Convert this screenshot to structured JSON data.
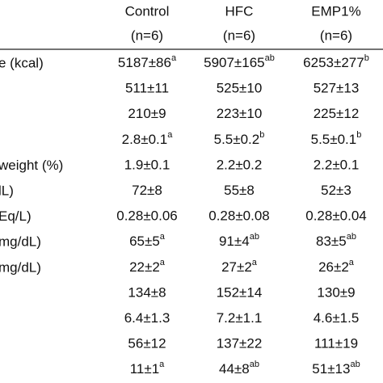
{
  "table": {
    "columns": [
      {
        "name": "Control",
        "n": "(n=6)"
      },
      {
        "name": "HFC",
        "n": "(n=6)"
      },
      {
        "name": "EMP1%",
        "n": "(n=6)"
      }
    ],
    "rows": [
      {
        "label": "e (kcal)",
        "cells": [
          {
            "text": "5187±86",
            "sup": "a"
          },
          {
            "text": "5907±165",
            "sup": "ab"
          },
          {
            "text": "6253±277",
            "sup": "b"
          }
        ]
      },
      {
        "cells": [
          {
            "text": "511±11"
          },
          {
            "text": "525±10"
          },
          {
            "text": "527±13"
          }
        ]
      },
      {
        "cells": [
          {
            "text": "210±9"
          },
          {
            "text": "223±10"
          },
          {
            "text": "225±12"
          }
        ]
      },
      {
        "cells": [
          {
            "text": "2.8±0.1",
            "sup": "a"
          },
          {
            "text": "5.5±0.2",
            "sup": "b"
          },
          {
            "text": "5.5±0.1",
            "sup": "b"
          }
        ]
      },
      {
        "label": " weight (%)",
        "cells": [
          {
            "text": "1.9±0.1"
          },
          {
            "text": "2.2±0.2"
          },
          {
            "text": "2.2±0.1"
          }
        ]
      },
      {
        "label": "lL)",
        "cells": [
          {
            "text": "72±8"
          },
          {
            "text": "55±8"
          },
          {
            "text": "52±3"
          }
        ]
      },
      {
        "label": "Eq/L)",
        "cells": [
          {
            "text": "0.28±0.06"
          },
          {
            "text": "0.28±0.08"
          },
          {
            "text": "0.28±0.04"
          }
        ]
      },
      {
        "label": "mg/dL)",
        "cells": [
          {
            "text": "65±5",
            "sup": "a"
          },
          {
            "text": "91±4",
            "sup": "ab"
          },
          {
            "text": "83±5",
            "sup": "ab"
          }
        ]
      },
      {
        "label": "mg/dL)",
        "cells": [
          {
            "text": "22±2",
            "sup": "a"
          },
          {
            "text": "27±2",
            "sup": "a"
          },
          {
            "text": "26±2",
            "sup": "a"
          }
        ]
      },
      {
        "cells": [
          {
            "text": "134±8"
          },
          {
            "text": "152±14"
          },
          {
            "text": "130±9"
          }
        ]
      },
      {
        "cells": [
          {
            "text": "6.4±1.3"
          },
          {
            "text": "7.2±1.1"
          },
          {
            "text": "4.6±1.5"
          }
        ]
      },
      {
        "cells": [
          {
            "text": "56±12"
          },
          {
            "text": "137±22"
          },
          {
            "text": "111±19"
          }
        ]
      },
      {
        "cells": [
          {
            "text": "11±1",
            "sup": "a"
          },
          {
            "text": "44±8",
            "sup": "ab"
          },
          {
            "text": "51±13",
            "sup": "ab"
          }
        ]
      }
    ]
  }
}
